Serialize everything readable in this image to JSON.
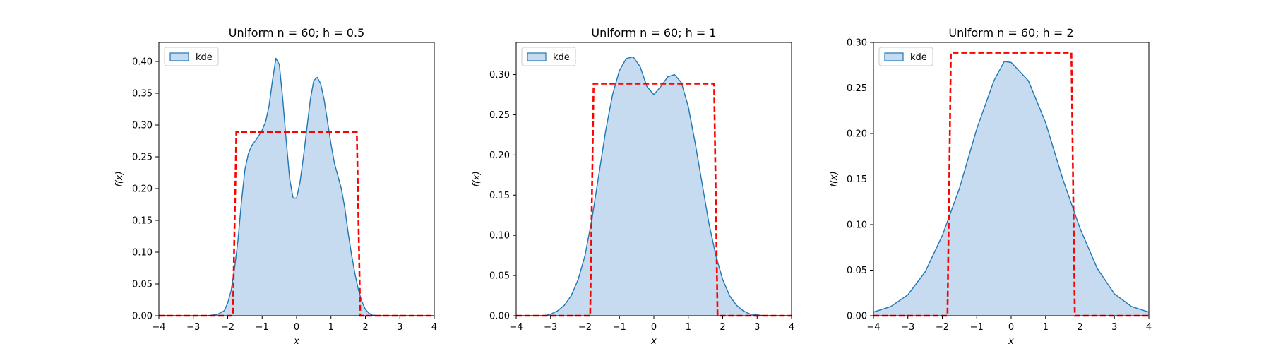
{
  "chart_data": [
    {
      "type": "area",
      "title": "Uniform n = 60; h = 0.5",
      "xlabel": "x",
      "ylabel": "f(x)",
      "xlim": [
        -4,
        4
      ],
      "ylim": [
        0,
        0.43
      ],
      "xticks": [
        -4,
        -3,
        -2,
        -1,
        0,
        1,
        2,
        3,
        4
      ],
      "yticks": [
        0.0,
        0.05,
        0.1,
        0.15,
        0.2,
        0.25,
        0.3,
        0.35,
        0.4
      ],
      "ytick_labels": [
        "0.00",
        "0.05",
        "0.10",
        "0.15",
        "0.20",
        "0.25",
        "0.30",
        "0.35",
        "0.40"
      ],
      "legend": {
        "position": "upper-left",
        "entries": [
          "kde"
        ]
      },
      "series": [
        {
          "name": "kde",
          "color": "#1f77b4",
          "fill": "#c6dbef",
          "x": [
            -4.0,
            -2.6,
            -2.3,
            -2.1,
            -2.0,
            -1.9,
            -1.8,
            -1.7,
            -1.6,
            -1.5,
            -1.4,
            -1.3,
            -1.2,
            -1.1,
            -1.0,
            -0.9,
            -0.8,
            -0.7,
            -0.6,
            -0.5,
            -0.4,
            -0.3,
            -0.2,
            -0.1,
            0.0,
            0.1,
            0.2,
            0.3,
            0.4,
            0.5,
            0.6,
            0.7,
            0.8,
            0.9,
            1.0,
            1.1,
            1.2,
            1.3,
            1.4,
            1.5,
            1.6,
            1.7,
            1.8,
            1.9,
            2.0,
            2.1,
            2.2,
            2.4,
            2.7,
            4.0
          ],
          "y": [
            0.0,
            0.0,
            0.002,
            0.008,
            0.02,
            0.04,
            0.075,
            0.12,
            0.18,
            0.23,
            0.255,
            0.268,
            0.275,
            0.283,
            0.292,
            0.305,
            0.33,
            0.37,
            0.405,
            0.395,
            0.34,
            0.275,
            0.215,
            0.185,
            0.185,
            0.21,
            0.25,
            0.295,
            0.34,
            0.37,
            0.375,
            0.365,
            0.34,
            0.305,
            0.27,
            0.24,
            0.22,
            0.2,
            0.17,
            0.13,
            0.095,
            0.065,
            0.04,
            0.022,
            0.01,
            0.004,
            0.001,
            0.0,
            0.0,
            0.0
          ]
        },
        {
          "name": "true",
          "color": "#ff0000",
          "dashed": true,
          "x": [
            -4.0,
            -1.85,
            -1.75,
            1.75,
            1.85,
            4.0
          ],
          "y": [
            0.0,
            0.0,
            0.2887,
            0.2887,
            0.0,
            0.0
          ]
        }
      ]
    },
    {
      "type": "area",
      "title": "Uniform n = 60; h = 1",
      "xlabel": "x",
      "ylabel": "f(x)",
      "xlim": [
        -4,
        4
      ],
      "ylim": [
        0,
        0.34
      ],
      "xticks": [
        -4,
        -3,
        -2,
        -1,
        0,
        1,
        2,
        3,
        4
      ],
      "yticks": [
        0.0,
        0.05,
        0.1,
        0.15,
        0.2,
        0.25,
        0.3
      ],
      "ytick_labels": [
        "0.00",
        "0.05",
        "0.10",
        "0.15",
        "0.20",
        "0.25",
        "0.30"
      ],
      "legend": {
        "position": "upper-left",
        "entries": [
          "kde"
        ]
      },
      "series": [
        {
          "name": "kde",
          "color": "#1f77b4",
          "fill": "#c6dbef",
          "x": [
            -4.0,
            -3.2,
            -3.0,
            -2.8,
            -2.6,
            -2.4,
            -2.2,
            -2.0,
            -1.8,
            -1.6,
            -1.4,
            -1.2,
            -1.0,
            -0.8,
            -0.6,
            -0.4,
            -0.2,
            0.0,
            0.2,
            0.4,
            0.6,
            0.8,
            1.0,
            1.2,
            1.4,
            1.6,
            1.8,
            2.0,
            2.2,
            2.4,
            2.6,
            2.8,
            3.0,
            3.2,
            4.0
          ],
          "y": [
            0.0,
            0.0,
            0.002,
            0.006,
            0.013,
            0.025,
            0.045,
            0.075,
            0.12,
            0.175,
            0.23,
            0.275,
            0.305,
            0.32,
            0.322,
            0.31,
            0.285,
            0.275,
            0.285,
            0.297,
            0.3,
            0.29,
            0.26,
            0.215,
            0.165,
            0.115,
            0.075,
            0.045,
            0.025,
            0.013,
            0.006,
            0.002,
            0.001,
            0.0,
            0.0
          ]
        },
        {
          "name": "true",
          "color": "#ff0000",
          "dashed": true,
          "x": [
            -4.0,
            -1.85,
            -1.75,
            1.75,
            1.85,
            4.0
          ],
          "y": [
            0.0,
            0.0,
            0.2887,
            0.2887,
            0.0,
            0.0
          ]
        }
      ]
    },
    {
      "type": "area",
      "title": "Uniform n = 60; h = 2",
      "xlabel": "x",
      "ylabel": "f(x)",
      "xlim": [
        -4,
        4
      ],
      "ylim": [
        0,
        0.3
      ],
      "xticks": [
        -4,
        -3,
        -2,
        -1,
        0,
        1,
        2,
        3,
        4
      ],
      "yticks": [
        0.0,
        0.05,
        0.1,
        0.15,
        0.2,
        0.25,
        0.3
      ],
      "ytick_labels": [
        "0.00",
        "0.05",
        "0.10",
        "0.15",
        "0.20",
        "0.25",
        "0.30"
      ],
      "legend": {
        "position": "upper-left",
        "entries": [
          "kde"
        ]
      },
      "series": [
        {
          "name": "kde",
          "color": "#1f77b4",
          "fill": "#c6dbef",
          "x": [
            -4.0,
            -3.5,
            -3.0,
            -2.5,
            -2.0,
            -1.5,
            -1.0,
            -0.5,
            -0.2,
            0.0,
            0.5,
            1.0,
            1.5,
            2.0,
            2.5,
            3.0,
            3.5,
            4.0
          ],
          "y": [
            0.004,
            0.01,
            0.023,
            0.048,
            0.088,
            0.14,
            0.205,
            0.258,
            0.279,
            0.278,
            0.258,
            0.212,
            0.15,
            0.096,
            0.052,
            0.024,
            0.01,
            0.004
          ]
        },
        {
          "name": "true",
          "color": "#ff0000",
          "dashed": true,
          "x": [
            -4.0,
            -1.85,
            -1.75,
            1.75,
            1.85,
            4.0
          ],
          "y": [
            0.0,
            0.0,
            0.2887,
            0.2887,
            0.0,
            0.0
          ]
        }
      ]
    }
  ]
}
